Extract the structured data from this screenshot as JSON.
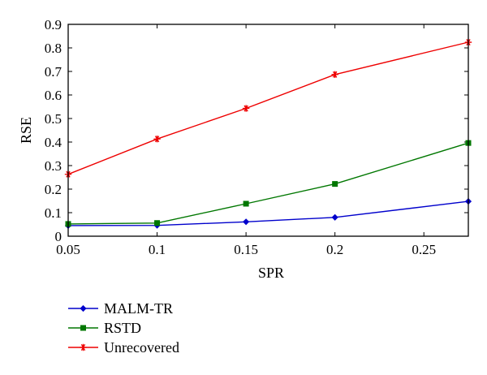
{
  "chart_data": {
    "type": "line",
    "title": "",
    "xlabel": "SPR",
    "ylabel": "RSE",
    "xlim": [
      0.05,
      0.275
    ],
    "ylim": [
      0,
      0.9
    ],
    "xticks": [
      0.05,
      0.1,
      0.15,
      0.2,
      0.25
    ],
    "xtick_labels": [
      "0.05",
      "0.1",
      "0.15",
      "0.2",
      "0.25"
    ],
    "yticks": [
      0,
      0.1,
      0.2,
      0.3,
      0.4,
      0.5,
      0.6,
      0.7,
      0.8,
      0.9
    ],
    "ytick_labels": [
      "0",
      "0.1",
      "0.2",
      "0.3",
      "0.4",
      "0.5",
      "0.6",
      "0.7",
      "0.8",
      "0.9"
    ],
    "grid": false,
    "legend_position": "bottom-left (below plot)",
    "x": [
      0.05,
      0.1,
      0.15,
      0.2,
      0.275
    ],
    "series": [
      {
        "name": "MALM-TR",
        "color": "#0000cc",
        "marker": "diamond",
        "values": [
          0.045,
          0.046,
          0.061,
          0.08,
          0.148
        ]
      },
      {
        "name": "RSTD",
        "color": "#007700",
        "marker": "square",
        "values": [
          0.052,
          0.056,
          0.138,
          0.222,
          0.396
        ]
      },
      {
        "name": "Unrecovered",
        "color": "#ee0000",
        "marker": "star",
        "values": [
          0.263,
          0.413,
          0.543,
          0.687,
          0.824
        ]
      }
    ]
  }
}
